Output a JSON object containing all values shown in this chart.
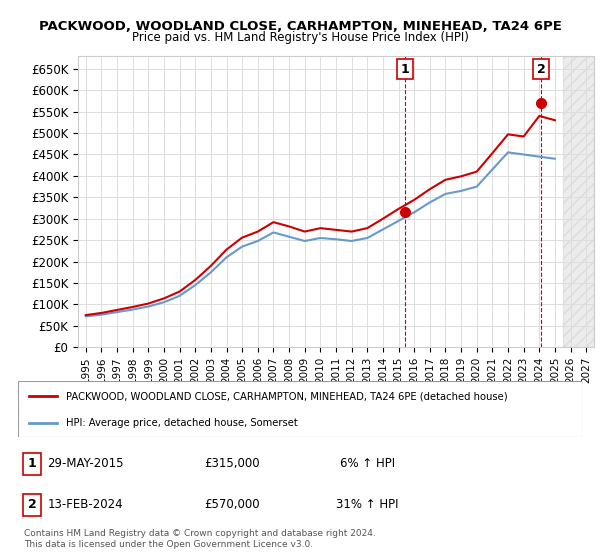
{
  "title": "PACKWOOD, WOODLAND CLOSE, CARHAMPTON, MINEHEAD, TA24 6PE",
  "subtitle": "Price paid vs. HM Land Registry's House Price Index (HPI)",
  "ylabel": "",
  "xlabel": "",
  "ylim": [
    0,
    680000
  ],
  "yticks": [
    0,
    50000,
    100000,
    150000,
    200000,
    250000,
    300000,
    350000,
    400000,
    450000,
    500000,
    550000,
    600000,
    650000
  ],
  "ytick_labels": [
    "£0",
    "£50K",
    "£100K",
    "£150K",
    "£200K",
    "£250K",
    "£300K",
    "£350K",
    "£400K",
    "£450K",
    "£500K",
    "£550K",
    "£600K",
    "£650K"
  ],
  "xlim_start": 1994.5,
  "xlim_end": 2027.5,
  "hpi_color": "#6699cc",
  "property_color": "#cc0000",
  "marker_color": "#cc0000",
  "background_color": "#ffffff",
  "grid_color": "#dddddd",
  "sale1_x": 2015.41,
  "sale1_y": 315000,
  "sale1_label": "1",
  "sale2_x": 2024.12,
  "sale2_y": 570000,
  "sale2_label": "2",
  "legend_line1": "PACKWOOD, WOODLAND CLOSE, CARHAMPTON, MINEHEAD, TA24 6PE (detached house)",
  "legend_line2": "HPI: Average price, detached house, Somerset",
  "table_row1_num": "1",
  "table_row1_date": "29-MAY-2015",
  "table_row1_price": "£315,000",
  "table_row1_hpi": "6% ↑ HPI",
  "table_row2_num": "2",
  "table_row2_date": "13-FEB-2024",
  "table_row2_price": "£570,000",
  "table_row2_hpi": "31% ↑ HPI",
  "footer": "Contains HM Land Registry data © Crown copyright and database right 2024.\nThis data is licensed under the Open Government Licence v3.0.",
  "hpi_years": [
    1995,
    1996,
    1997,
    1998,
    1999,
    2000,
    2001,
    2002,
    2003,
    2004,
    2005,
    2006,
    2007,
    2008,
    2009,
    2010,
    2011,
    2012,
    2013,
    2014,
    2015,
    2016,
    2017,
    2018,
    2019,
    2020,
    2021,
    2022,
    2023,
    2024,
    2025
  ],
  "hpi_values": [
    72000,
    76000,
    82000,
    88000,
    95000,
    105000,
    120000,
    145000,
    175000,
    210000,
    235000,
    248000,
    268000,
    258000,
    248000,
    255000,
    252000,
    248000,
    255000,
    275000,
    295000,
    315000,
    338000,
    358000,
    365000,
    375000,
    415000,
    455000,
    450000,
    445000,
    440000
  ],
  "prop_years": [
    1995,
    1996,
    1997,
    1998,
    1999,
    2000,
    2001,
    2002,
    2003,
    2004,
    2005,
    2006,
    2007,
    2008,
    2009,
    2010,
    2011,
    2012,
    2013,
    2014,
    2015,
    2016,
    2017,
    2018,
    2019,
    2020,
    2021,
    2022,
    2023,
    2024,
    2025
  ],
  "prop_values": [
    75000,
    80000,
    87000,
    94000,
    102000,
    114000,
    130000,
    157000,
    190000,
    228000,
    256000,
    270000,
    292000,
    282000,
    270000,
    278000,
    274000,
    270000,
    278000,
    300000,
    323000,
    344000,
    369000,
    391000,
    399000,
    410000,
    453000,
    497000,
    492000,
    540000,
    530000
  ],
  "xtick_years": [
    1995,
    1996,
    1997,
    1998,
    1999,
    2000,
    2001,
    2002,
    2003,
    2004,
    2005,
    2006,
    2007,
    2008,
    2009,
    2010,
    2011,
    2012,
    2013,
    2014,
    2015,
    2016,
    2017,
    2018,
    2019,
    2020,
    2021,
    2022,
    2023,
    2024,
    2025,
    2026,
    2027
  ]
}
